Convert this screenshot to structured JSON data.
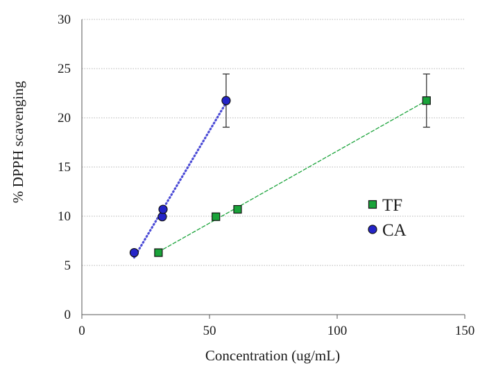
{
  "chart_data": {
    "type": "scatter",
    "xlabel": "Concentration (ug/mL)",
    "ylabel": "% DPPH scavenging",
    "xlim": [
      0,
      150
    ],
    "ylim": [
      0,
      30
    ],
    "x_ticks": [
      "0",
      "50",
      "100",
      "150"
    ],
    "y_ticks": [
      "0",
      "5",
      "10",
      "15",
      "20",
      "25",
      "30"
    ],
    "grid": "horizontal dotted",
    "legend_position": "right-middle",
    "series": [
      {
        "name": "TF",
        "marker": "square",
        "color": "#1aa33a",
        "trendline": "dashed",
        "trendline_color": "#1aa33a",
        "points": [
          {
            "x": 30,
            "y": 6.3
          },
          {
            "x": 52.5,
            "y": 9.95
          },
          {
            "x": 61,
            "y": 10.7
          },
          {
            "x": 135,
            "y": 21.75,
            "error": 2.7
          }
        ]
      },
      {
        "name": "CA",
        "marker": "circle",
        "color": "#2424c8",
        "trendline": "dotted",
        "trendline_color": "#4b4bd6",
        "points": [
          {
            "x": 20.5,
            "y": 6.3
          },
          {
            "x": 31.5,
            "y": 9.95
          },
          {
            "x": 31.8,
            "y": 10.7
          },
          {
            "x": 56.5,
            "y": 21.75,
            "error": 2.7
          }
        ]
      }
    ]
  }
}
